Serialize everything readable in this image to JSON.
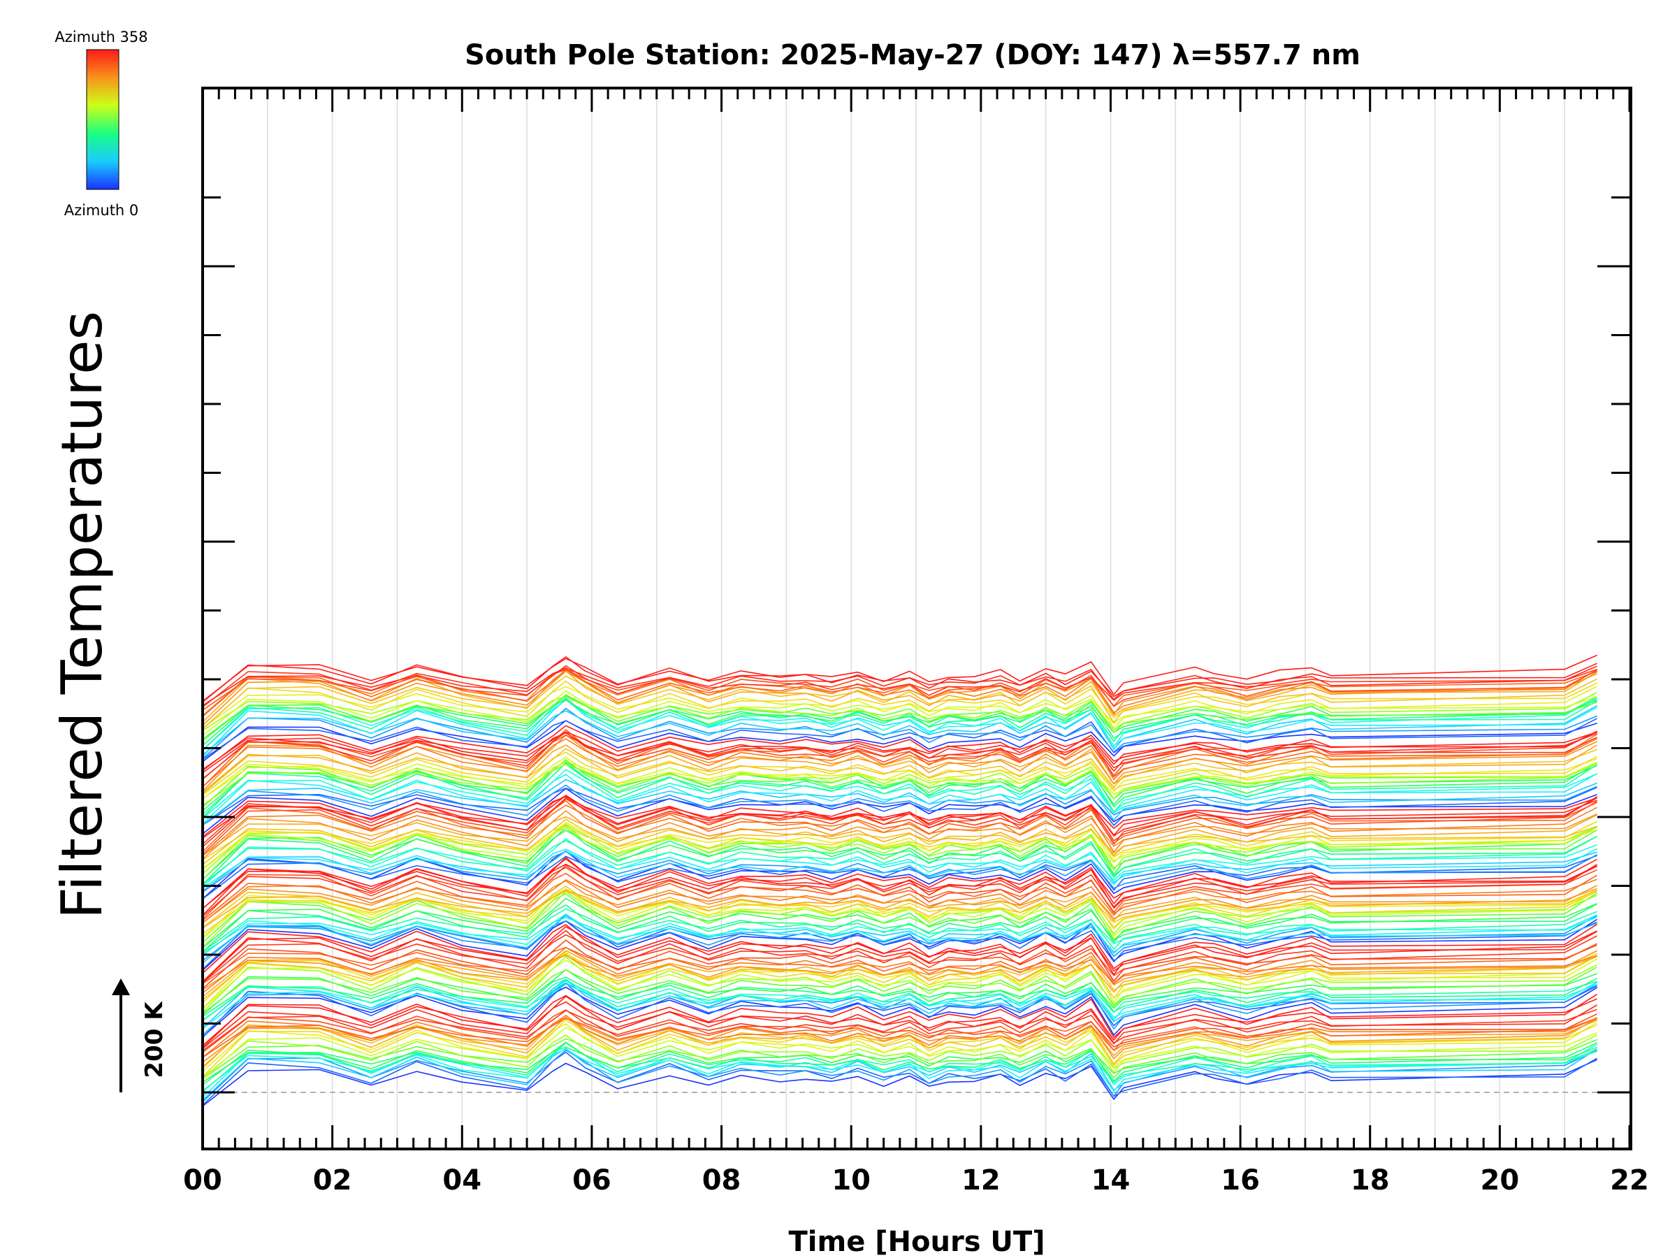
{
  "chart_data": {
    "type": "line",
    "title": "South Pole Station: 2025-May-27 (DOY: 147) λ=557.7 nm",
    "xlabel": "Time [Hours UT]",
    "ylabel": "Filtered Temperatures",
    "xlim": [
      0,
      22
    ],
    "x_ticks": [
      "00",
      "02",
      "04",
      "06",
      "08",
      "10",
      "12",
      "14",
      "16",
      "18",
      "20",
      "22"
    ],
    "legend": {
      "label_top": "Azimuth 358",
      "label_bottom": "Azimuth 0",
      "placement": "top-left",
      "color_top": "#ff1a1a",
      "color_bottom": "#1a33ff"
    },
    "scale_bar": {
      "label": "200 K",
      "value_k": 200
    },
    "groups": 6,
    "azimuths_per_group": 24,
    "group_baselines_k": [
      0,
      200,
      400,
      600,
      800,
      1000
    ],
    "x": [
      0.0,
      0.7,
      1.8,
      2.6,
      3.3,
      4.0,
      5.0,
      5.4,
      5.6,
      5.9,
      6.4,
      7.2,
      7.8,
      8.3,
      8.9,
      9.3,
      9.7,
      10.1,
      10.5,
      10.9,
      11.2,
      11.5,
      11.9,
      12.3,
      12.6,
      13.0,
      13.3,
      13.7,
      14.05,
      14.2,
      15.3,
      15.6,
      16.1,
      16.6,
      17.1,
      17.4,
      21.0,
      21.5
    ],
    "shared_signal_k": [
      -40,
      70,
      65,
      20,
      70,
      35,
      5,
      70,
      95,
      60,
      15,
      60,
      25,
      50,
      40,
      45,
      30,
      50,
      25,
      45,
      15,
      35,
      30,
      45,
      20,
      55,
      30,
      70,
      -20,
      5,
      50,
      40,
      20,
      40,
      55,
      35,
      45,
      90
    ],
    "series_colors_by_azimuth": [
      "#1a33ff",
      "#1a66ff",
      "#1a99ff",
      "#1accff",
      "#1af0ff",
      "#1affe0",
      "#1affb0",
      "#1aff80",
      "#33ff50",
      "#66ff33",
      "#99ff1a",
      "#ccff1a",
      "#e6f01a",
      "#f0d91a",
      "#f5c21a",
      "#f7aa1a",
      "#f9931a",
      "#fb7b1a",
      "#fc641a",
      "#fd4d1a",
      "#fe361a",
      "#ff2a1a",
      "#ff201a",
      "#ff1a1a"
    ]
  }
}
